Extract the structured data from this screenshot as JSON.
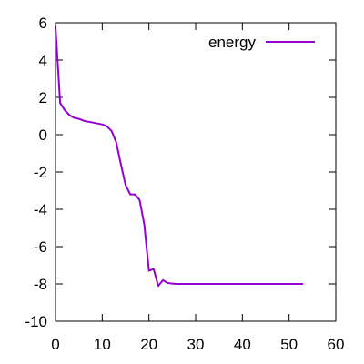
{
  "chart_data": {
    "type": "line",
    "title": "",
    "xlabel": "",
    "ylabel": "",
    "xlim": [
      0,
      60
    ],
    "ylim": [
      -10,
      6
    ],
    "xticks": [
      0,
      10,
      20,
      30,
      40,
      50,
      60
    ],
    "yticks": [
      -10,
      -8,
      -6,
      -4,
      -2,
      0,
      2,
      4,
      6
    ],
    "xtick_labels": [
      "0",
      "10",
      "20",
      "30",
      "40",
      "50",
      "60"
    ],
    "ytick_labels": [
      "-10",
      "-8",
      "-6",
      "-4",
      "-2",
      "0",
      "2",
      "4",
      "6"
    ],
    "grid": false,
    "legend_position": "top-right",
    "series": [
      {
        "name": "energy",
        "color": "#9400d3",
        "x": [
          0,
          1,
          2,
          3,
          4,
          5,
          6,
          7,
          8,
          9,
          10,
          11,
          12,
          13,
          14,
          15,
          16,
          17,
          18,
          19,
          20,
          21,
          22,
          23,
          24,
          25,
          26,
          27,
          28,
          29,
          30,
          35,
          40,
          45,
          50,
          53
        ],
        "y": [
          5.8,
          1.7,
          1.3,
          1.05,
          0.9,
          0.85,
          0.75,
          0.7,
          0.65,
          0.6,
          0.55,
          0.45,
          0.2,
          -0.4,
          -1.6,
          -2.7,
          -3.2,
          -3.2,
          -3.5,
          -4.8,
          -7.3,
          -7.2,
          -8.1,
          -7.8,
          -7.95,
          -7.98,
          -8.0,
          -8.0,
          -8.0,
          -8.0,
          -8.0,
          -8.0,
          -8.0,
          -8.0,
          -8.0,
          -8.0
        ]
      }
    ]
  }
}
